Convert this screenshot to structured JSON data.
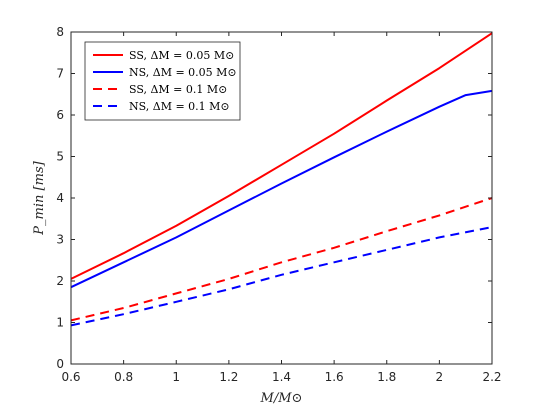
{
  "chart_data": {
    "type": "line",
    "xlabel": "M/M⊙",
    "ylabel": "P_min [ms]",
    "xlim": [
      0.6,
      2.2
    ],
    "ylim": [
      0,
      8
    ],
    "xticks": [
      0.6,
      0.8,
      1,
      1.2,
      1.4,
      1.6,
      1.8,
      2,
      2.2
    ],
    "yticks": [
      0,
      1,
      2,
      3,
      4,
      5,
      6,
      7,
      8
    ],
    "xtick_labels": [
      "0.6",
      "0.8",
      "1",
      "1.2",
      "1.4",
      "1.6",
      "1.8",
      "2",
      "2.2"
    ],
    "ytick_labels": [
      "0",
      "1",
      "2",
      "3",
      "4",
      "5",
      "6",
      "7",
      "8"
    ],
    "grid": false,
    "legend_position": "top-left",
    "series": [
      {
        "name": "SS, ΔM = 0.05 M⊙",
        "color": "#ff0000",
        "style": "solid",
        "x": [
          0.6,
          0.8,
          1.0,
          1.2,
          1.4,
          1.6,
          1.8,
          2.0,
          2.2
        ],
        "y": [
          2.05,
          2.67,
          3.33,
          4.05,
          4.8,
          5.55,
          6.35,
          7.13,
          7.97
        ]
      },
      {
        "name": "NS, ΔM = 0.05 M⊙",
        "color": "#0000ff",
        "style": "solid",
        "x": [
          0.6,
          0.8,
          1.0,
          1.2,
          1.4,
          1.6,
          1.8,
          2.0,
          2.1,
          2.2
        ],
        "y": [
          1.85,
          2.45,
          3.05,
          3.7,
          4.35,
          4.98,
          5.6,
          6.2,
          6.48,
          6.58
        ]
      },
      {
        "name": "SS, ΔM = 0.1 M⊙",
        "color": "#ff0000",
        "style": "dashed",
        "x": [
          0.6,
          0.8,
          1.0,
          1.2,
          1.4,
          1.6,
          1.8,
          2.0,
          2.2
        ],
        "y": [
          1.05,
          1.35,
          1.7,
          2.05,
          2.45,
          2.8,
          3.2,
          3.58,
          4.0
        ]
      },
      {
        "name": "NS, ΔM = 0.1 M⊙",
        "color": "#0000ff",
        "style": "dashed",
        "x": [
          0.6,
          0.8,
          1.0,
          1.2,
          1.4,
          1.6,
          1.8,
          2.0,
          2.2
        ],
        "y": [
          0.93,
          1.2,
          1.5,
          1.8,
          2.15,
          2.45,
          2.75,
          3.05,
          3.3
        ]
      }
    ]
  }
}
